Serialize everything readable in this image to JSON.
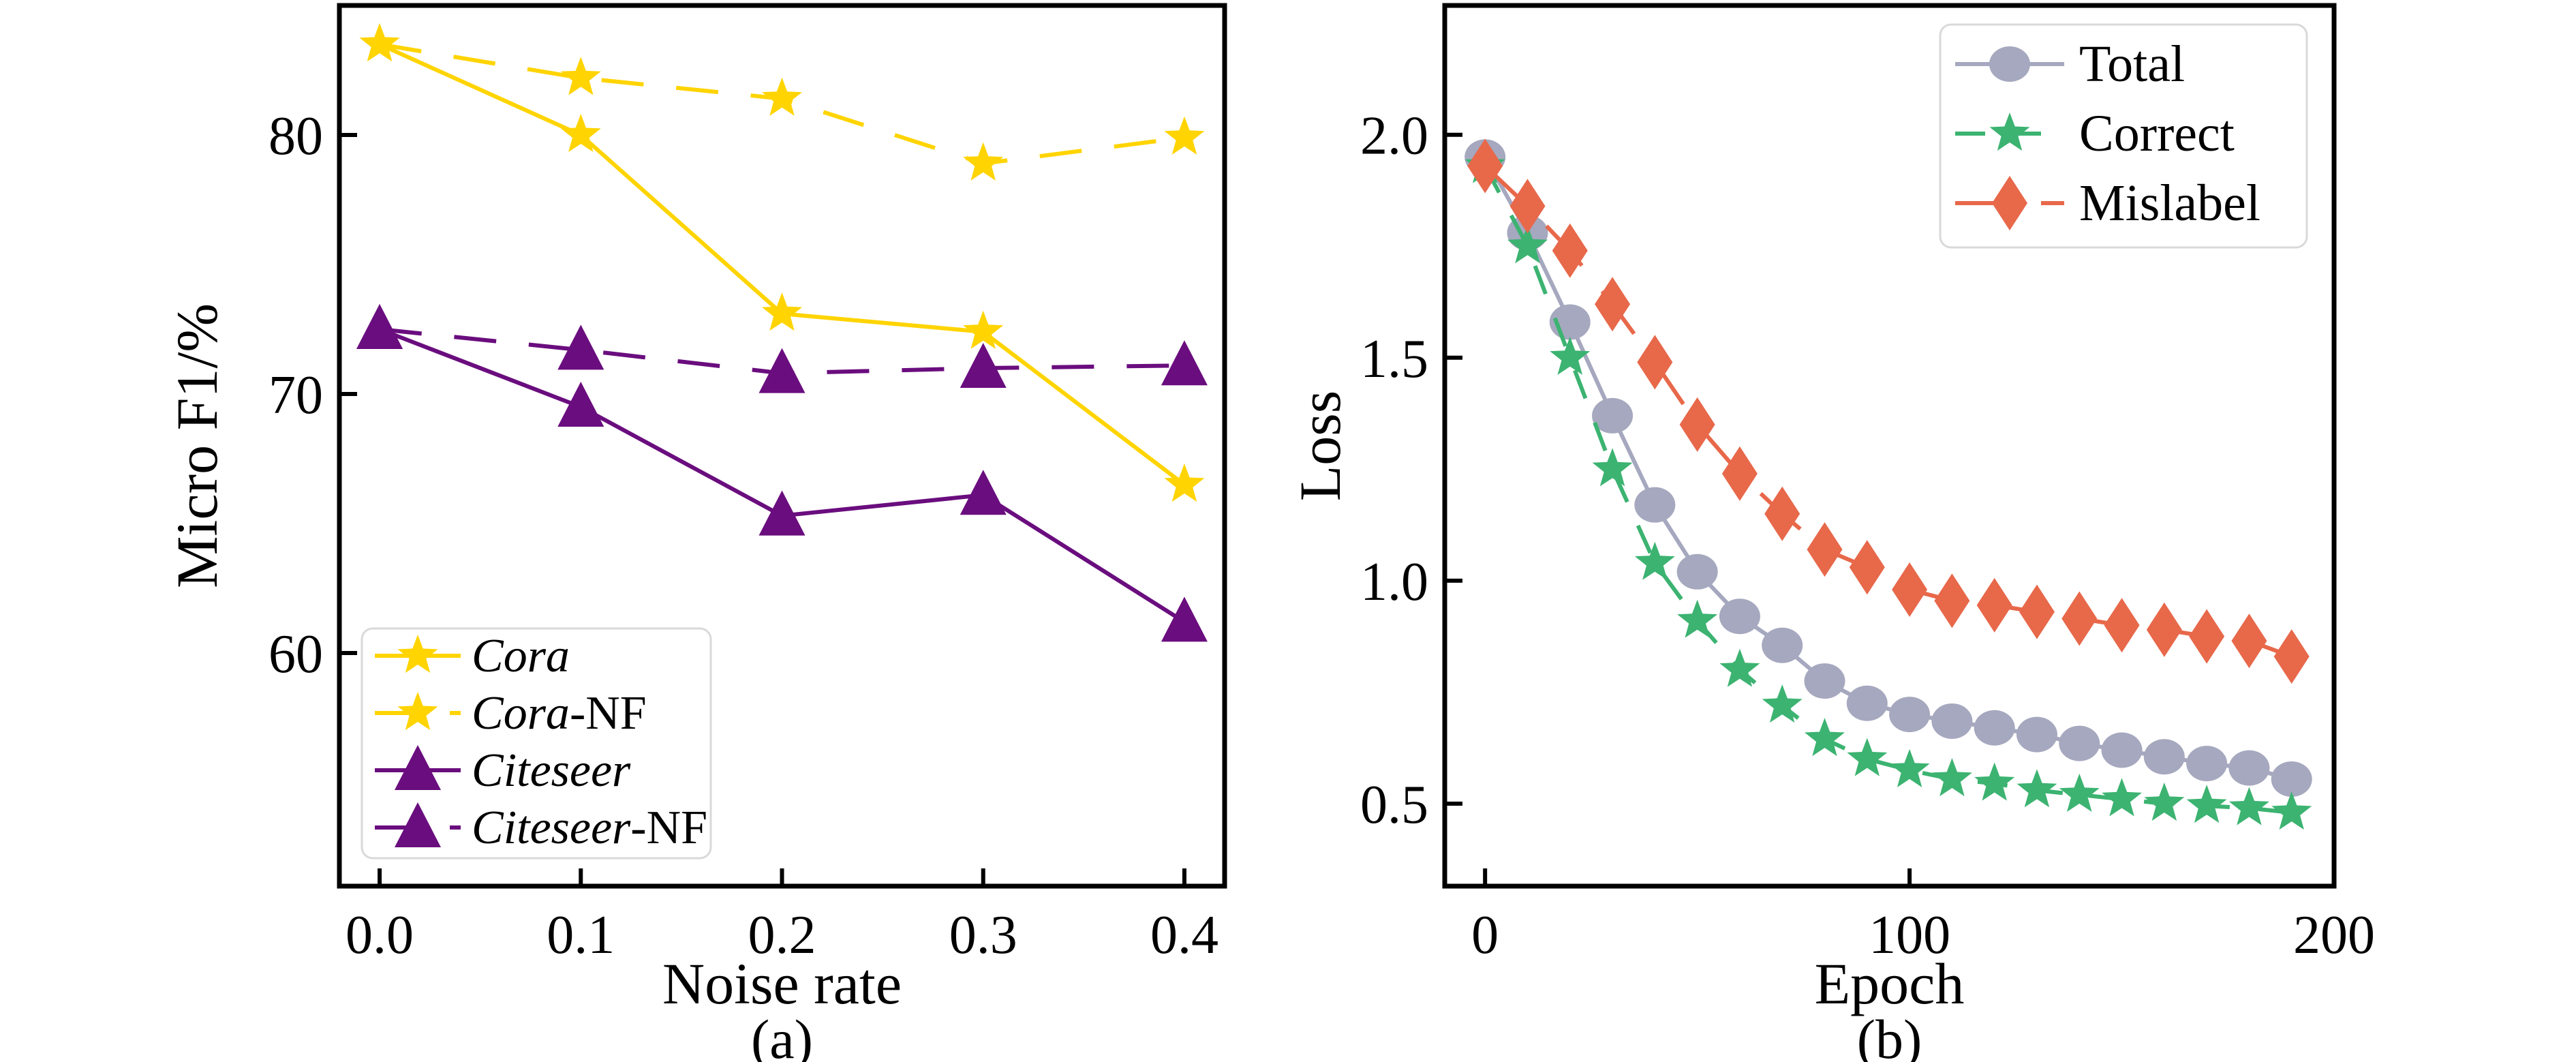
{
  "figure": {
    "background": "#ffffff",
    "text_color": "#000000",
    "spine_color": "#000000"
  },
  "chart_data": [
    {
      "id": "a",
      "type": "line",
      "caption": "(a)",
      "xlabel": "Noise rate",
      "ylabel": "Micro F1/%",
      "xlim": [
        -0.02,
        0.42
      ],
      "ylim": [
        51,
        85
      ],
      "grid": false,
      "legend_position": "lower-left",
      "xticks": {
        "values": [
          0.0,
          0.1,
          0.2,
          0.3,
          0.4
        ],
        "labels": [
          "0.0",
          "0.1",
          "0.2",
          "0.3",
          "0.4"
        ]
      },
      "yticks": {
        "values": [
          60,
          70,
          80
        ],
        "labels": [
          "60",
          "70",
          "80"
        ]
      },
      "x": [
        0.0,
        0.1,
        0.2,
        0.3,
        0.4
      ],
      "series": [
        {
          "name": "Cora",
          "label_italic": "Cora",
          "label_suffix": "",
          "color": "#FFD400",
          "linestyle": "solid",
          "marker": "star",
          "values": [
            83.5,
            80.0,
            73.1,
            72.4,
            66.5
          ]
        },
        {
          "name": "Cora-NF",
          "label_italic": "Cora",
          "label_suffix": "-NF",
          "color": "#FFD400",
          "linestyle": "dashed",
          "marker": "star",
          "values": [
            83.5,
            82.2,
            81.4,
            78.9,
            79.9
          ]
        },
        {
          "name": "Citeseer",
          "label_italic": "Citeseer",
          "label_suffix": "",
          "color": "#6A0D7E",
          "linestyle": "solid",
          "marker": "triangle-up",
          "values": [
            72.5,
            69.5,
            65.3,
            66.1,
            61.2
          ]
        },
        {
          "name": "Citeseer-NF",
          "label_italic": "Citeseer",
          "label_suffix": "-NF",
          "color": "#6A0D7E",
          "linestyle": "dashed",
          "marker": "triangle-up",
          "values": [
            72.5,
            71.7,
            70.8,
            71.0,
            71.1
          ]
        }
      ]
    },
    {
      "id": "b",
      "type": "line",
      "caption": "(b)",
      "xlabel": "Epoch",
      "ylabel": "Loss",
      "xlim": [
        -9.5,
        200
      ],
      "ylim": [
        0.315,
        2.29
      ],
      "grid": false,
      "legend_position": "upper-right",
      "xticks": {
        "values": [
          0,
          100,
          200
        ],
        "labels": [
          "0",
          "100",
          "200"
        ]
      },
      "yticks": {
        "values": [
          0.5,
          1.0,
          1.5,
          2.0
        ],
        "labels": [
          "0.5",
          "1.0",
          "1.5",
          "2.0"
        ]
      },
      "x": [
        0,
        10,
        20,
        30,
        40,
        50,
        60,
        70,
        80,
        90,
        100,
        110,
        120,
        130,
        140,
        150,
        160,
        170,
        180,
        190
      ],
      "series": [
        {
          "name": "Total",
          "label_italic": "",
          "label_suffix": "Total",
          "color": "#A5A8BE",
          "linestyle": "solid",
          "marker": "circle",
          "values": [
            1.95,
            1.78,
            1.58,
            1.37,
            1.17,
            1.02,
            0.92,
            0.855,
            0.775,
            0.725,
            0.7,
            0.685,
            0.67,
            0.655,
            0.635,
            0.62,
            0.605,
            0.59,
            0.58,
            0.555
          ]
        },
        {
          "name": "Correct",
          "label_italic": "",
          "label_suffix": "Correct",
          "color": "#3CB371",
          "linestyle": "dashed-short",
          "marker": "star",
          "values": [
            1.93,
            1.75,
            1.5,
            1.25,
            1.04,
            0.91,
            0.8,
            0.72,
            0.645,
            0.6,
            0.575,
            0.555,
            0.545,
            0.53,
            0.52,
            0.51,
            0.5,
            0.495,
            0.49,
            0.48
          ]
        },
        {
          "name": "Mislabel",
          "label_italic": "",
          "label_suffix": "Mislabel",
          "color": "#E8684A",
          "linestyle": "dashed-long",
          "marker": "diamond",
          "values": [
            1.93,
            1.84,
            1.74,
            1.62,
            1.49,
            1.35,
            1.24,
            1.15,
            1.07,
            1.03,
            0.98,
            0.955,
            0.945,
            0.93,
            0.915,
            0.9,
            0.89,
            0.875,
            0.865,
            0.83
          ]
        }
      ]
    }
  ]
}
